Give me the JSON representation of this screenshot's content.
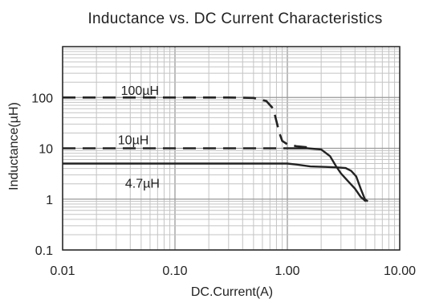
{
  "chart_data": {
    "type": "line",
    "title": "Inductance vs. DC Current Characteristics",
    "xlabel": "DC.Current(A)",
    "ylabel": "Inductance(µH)",
    "x_scale": "log",
    "y_scale": "log",
    "xlim": [
      0.01,
      10
    ],
    "ylim": [
      0.1,
      1000
    ],
    "x_tick_labels": [
      "0.01",
      "0.10",
      "1.00",
      "10.00"
    ],
    "x_tick_values": [
      0.01,
      0.1,
      1,
      10
    ],
    "y_tick_labels": [
      "0.1",
      "1",
      "10",
      "100"
    ],
    "y_tick_values": [
      0.1,
      1,
      10,
      100
    ],
    "grid": true,
    "series": [
      {
        "name": "100µH",
        "line_style": "dashed",
        "points": [
          [
            0.01,
            100
          ],
          [
            0.3,
            100
          ],
          [
            0.5,
            98
          ],
          [
            0.65,
            85
          ],
          [
            0.75,
            60
          ],
          [
            0.85,
            20
          ],
          [
            0.9,
            14
          ],
          [
            1.0,
            12
          ],
          [
            1.2,
            11
          ],
          [
            1.5,
            10.5
          ]
        ]
      },
      {
        "name": "10µH",
        "line_style": "dashed-solid",
        "points": [
          [
            0.01,
            10
          ],
          [
            0.5,
            10
          ],
          [
            1.0,
            10
          ],
          [
            1.5,
            10
          ],
          [
            2.0,
            9.5
          ],
          [
            2.4,
            7
          ],
          [
            2.7,
            4.5
          ],
          [
            3.0,
            3.2
          ],
          [
            3.5,
            2.2
          ],
          [
            4.0,
            1.6
          ],
          [
            4.5,
            1.1
          ],
          [
            5.0,
            0.9
          ]
        ]
      },
      {
        "name": "4.7µH",
        "line_style": "solid",
        "points": [
          [
            0.01,
            5
          ],
          [
            1.0,
            5
          ],
          [
            1.2,
            4.8
          ],
          [
            1.6,
            4.4
          ],
          [
            2.2,
            4.3
          ],
          [
            2.8,
            4.2
          ],
          [
            3.3,
            4.1
          ],
          [
            3.7,
            3.6
          ],
          [
            4.1,
            2.8
          ],
          [
            4.5,
            1.6
          ],
          [
            4.9,
            1.0
          ],
          [
            5.2,
            0.9
          ]
        ]
      }
    ],
    "series_label_positions_data": [
      {
        "name": "100µH",
        "x": 0.033,
        "y": 140
      },
      {
        "name": "10µH",
        "x": 0.031,
        "y": 15
      },
      {
        "name": "4.7µH",
        "x": 0.036,
        "y": 2.1
      }
    ]
  }
}
